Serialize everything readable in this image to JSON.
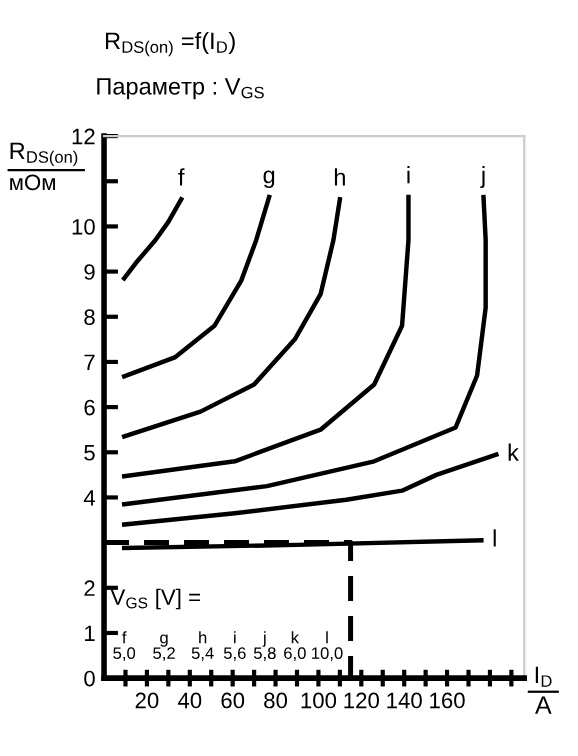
{
  "chart_data": {
    "type": "line",
    "title": "R$_{DS(on)}$ =f(I$_{D}$)",
    "subtitle": "Параметр : V$_{GS}$",
    "ylabel": "R$_{DS(on)}$\nмОм",
    "xlabel": "I$_{D}$\nA",
    "xlim": [
      0,
      196
    ],
    "xticks": [
      {
        "value": 10,
        "label": null
      },
      20,
      {
        "value": 30,
        "label": null
      },
      40,
      {
        "value": 50,
        "label": null
      },
      60,
      {
        "value": 70,
        "label": null
      },
      80,
      {
        "value": 90,
        "label": null
      },
      100,
      {
        "value": 110,
        "label": null
      },
      120,
      {
        "value": 130,
        "label": null
      },
      140,
      {
        "value": 150,
        "label": null
      },
      160,
      {
        "value": 170,
        "label": null
      },
      {
        "value": 180,
        "label": null
      },
      {
        "value": 190,
        "label": null
      }
    ],
    "ylim": [
      0,
      12
    ],
    "yticks": [
      0,
      1,
      2,
      {
        "value": 3,
        "label": null
      },
      4,
      5,
      6,
      7,
      8,
      9,
      10,
      {
        "value": 11,
        "label": null
      },
      12
    ],
    "grid": false,
    "legend": false,
    "line_style": "solid",
    "marker": "none",
    "series": [
      {
        "name": "f",
        "color": "#000000",
        "x": [
          9.4,
          15,
          24,
          30,
          36
        ],
        "values": [
          8.85,
          9.2,
          9.7,
          10.1,
          10.6
        ]
      },
      {
        "name": "g",
        "color": "#000000",
        "x": [
          9.4,
          33,
          51.5,
          64,
          71,
          77
        ],
        "values": [
          6.68,
          7.1,
          7.8,
          8.8,
          9.7,
          10.65
        ]
      },
      {
        "name": "h",
        "color": "#000000",
        "x": [
          9.4,
          45,
          70,
          89,
          101,
          107,
          110
        ],
        "values": [
          5.35,
          5.9,
          6.5,
          7.5,
          8.5,
          9.7,
          10.6
        ]
      },
      {
        "name": "i",
        "color": "#000000",
        "x": [
          9.4,
          61,
          101,
          126,
          139,
          142,
          142
        ],
        "values": [
          4.47,
          4.8,
          5.5,
          6.5,
          7.8,
          9.7,
          10.65
        ]
      },
      {
        "name": "j",
        "color": "#000000",
        "x": [
          9.4,
          76,
          126,
          164,
          174,
          178,
          178,
          177
        ],
        "values": [
          3.85,
          4.25,
          4.8,
          5.55,
          6.7,
          8.2,
          9.7,
          10.65
        ]
      },
      {
        "name": "k",
        "color": "#000000",
        "x": [
          9.4,
          61,
          113,
          139,
          155,
          183
        ],
        "values": [
          3.4,
          3.65,
          3.95,
          4.15,
          4.5,
          4.95
        ]
      },
      {
        "name": "l",
        "color": "#000000",
        "x": [
          9.4,
          90,
          176
        ],
        "values": [
          2.88,
          2.95,
          3.05
        ]
      },
      {
        "color": "#000000",
        "line_style": "dashed",
        "x": [
          0,
          115,
          115
        ],
        "values": [
          3.0,
          3.0,
          0
        ]
      }
    ],
    "annotations": [
      "V$_{GS}$ [V] =",
      "f\n5,0",
      "g\n5,2",
      "h\n5,4",
      "i\n5,6",
      "j\n5,8",
      "k\n6,0",
      "l\n10,0"
    ]
  }
}
